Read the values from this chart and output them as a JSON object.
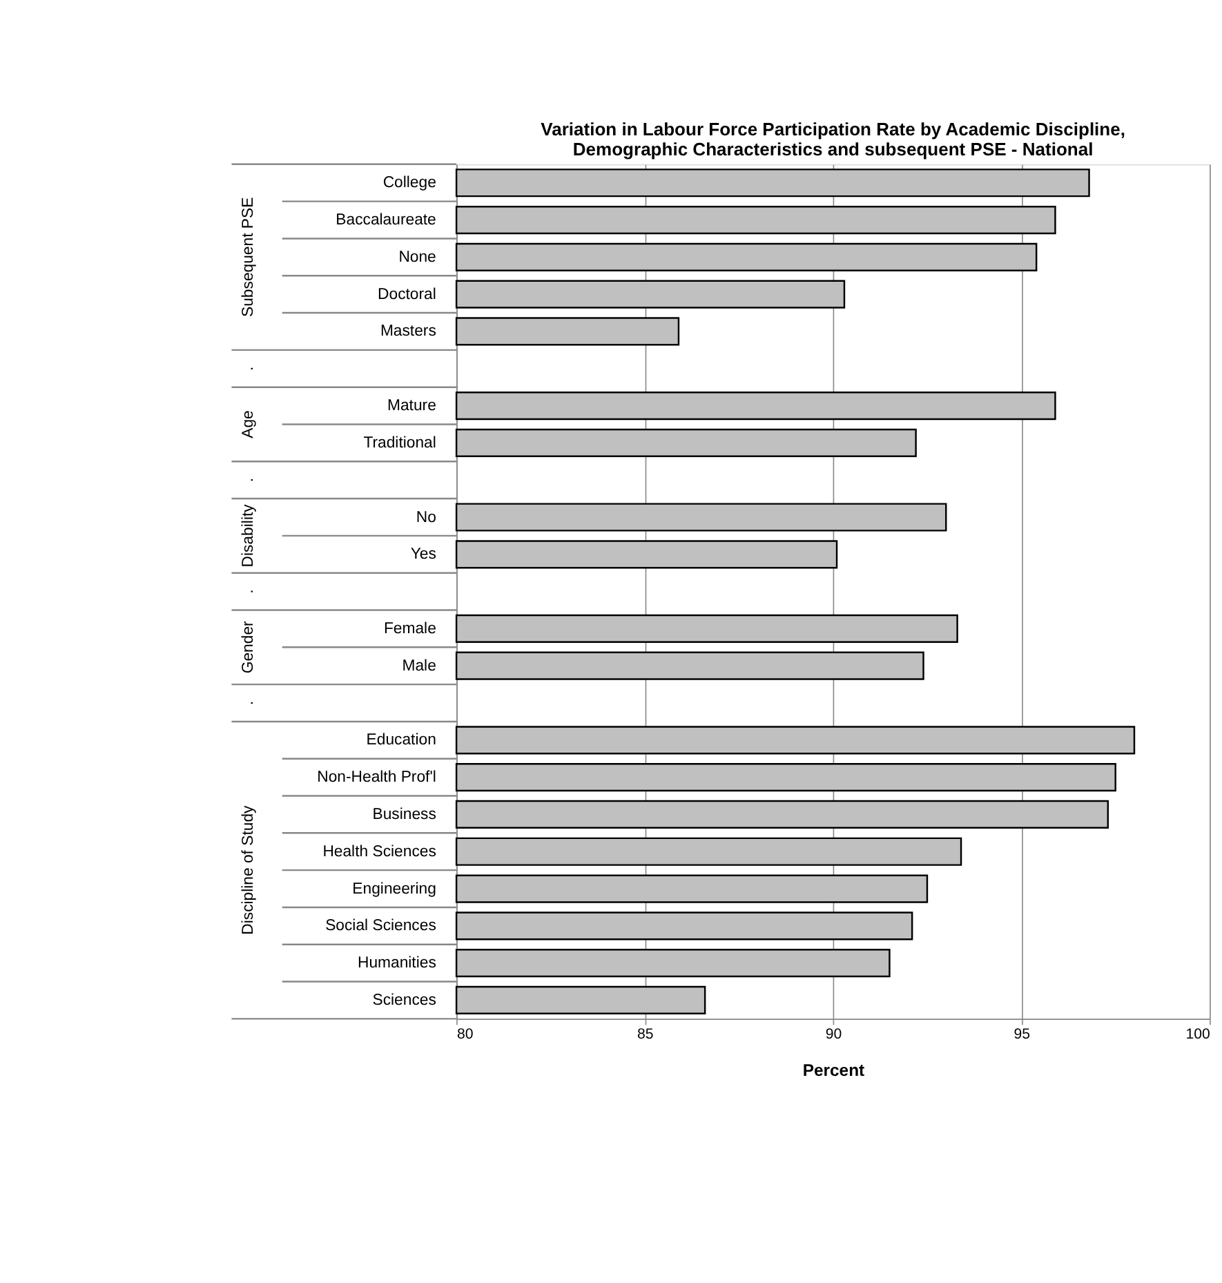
{
  "chart_data": {
    "type": "bar",
    "orientation": "horizontal",
    "title": "Variation in Labour Force Participation Rate by Academic Discipline,\nDemographic Characteristics and subsequent PSE - National",
    "xlabel": "Percent",
    "categories": [
      "College",
      "Baccalaureate",
      "None",
      "Doctoral",
      "Masters",
      null,
      "Mature",
      "Traditional",
      null,
      "No",
      "Yes",
      null,
      "Female",
      "Male",
      null,
      "Education",
      "Non-Health Prof'l",
      "Business",
      "Health Sciences",
      "Engineering",
      "Social Sciences",
      "Humanities",
      "Sciences"
    ],
    "values": [
      96.8,
      95.9,
      95.4,
      90.3,
      85.9,
      null,
      95.9,
      92.2,
      null,
      93.0,
      90.1,
      null,
      93.3,
      92.4,
      null,
      98.0,
      97.5,
      97.3,
      93.4,
      92.5,
      92.1,
      91.5,
      86.6
    ],
    "color": "#c0c0c0",
    "xlim": [
      80,
      100
    ],
    "xticks": [
      80,
      85,
      90,
      95,
      100
    ],
    "grid": "x",
    "annotations": [
      "Subsequent PSE",
      ".",
      "Age",
      ".",
      "Disability",
      ".",
      "Gender",
      ".",
      "Discipline of Study"
    ]
  }
}
